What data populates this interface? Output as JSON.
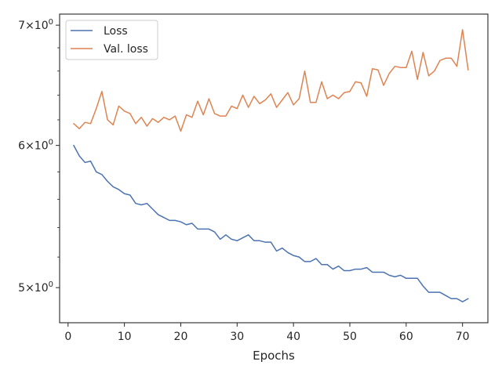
{
  "chart_data": {
    "type": "line",
    "title": "",
    "xlabel": "Epochs",
    "ylabel": "",
    "yscale": "log",
    "xlim": [
      -1.5,
      74.5
    ],
    "ylim": [
      4.78,
      7.1
    ],
    "grid": false,
    "legend_position": "top-left",
    "x_ticks": [
      0,
      10,
      20,
      30,
      40,
      50,
      60,
      70
    ],
    "x_tick_labels": [
      "0",
      "10",
      "20",
      "30",
      "40",
      "50",
      "60",
      "70"
    ],
    "y_ticks": [
      {
        "value": 5,
        "base": "5",
        "sep": "×",
        "exp_base": "10",
        "exp": "0"
      },
      {
        "value": 6,
        "base": "6",
        "sep": "×",
        "exp_base": "10",
        "exp": "0"
      },
      {
        "value": 7,
        "base": "7",
        "sep": "×",
        "exp_base": "10",
        "exp": "0"
      }
    ],
    "x": [
      1,
      2,
      3,
      4,
      5,
      6,
      7,
      8,
      9,
      10,
      11,
      12,
      13,
      14,
      15,
      16,
      17,
      18,
      19,
      20,
      21,
      22,
      23,
      24,
      25,
      26,
      27,
      28,
      29,
      30,
      31,
      32,
      33,
      34,
      35,
      36,
      37,
      38,
      39,
      40,
      41,
      42,
      43,
      44,
      45,
      46,
      47,
      48,
      49,
      50,
      51,
      52,
      53,
      54,
      55,
      56,
      57,
      58,
      59,
      60,
      61,
      62,
      63,
      64,
      65,
      66,
      67,
      68,
      69,
      70,
      71
    ],
    "series": [
      {
        "name": "Loss",
        "color": "#4c72b0",
        "values": [
          6.0,
          5.92,
          5.87,
          5.88,
          5.8,
          5.78,
          5.73,
          5.69,
          5.67,
          5.64,
          5.63,
          5.57,
          5.56,
          5.57,
          5.53,
          5.49,
          5.47,
          5.45,
          5.45,
          5.44,
          5.42,
          5.43,
          5.39,
          5.39,
          5.39,
          5.37,
          5.32,
          5.35,
          5.32,
          5.31,
          5.33,
          5.35,
          5.31,
          5.31,
          5.3,
          5.3,
          5.24,
          5.26,
          5.23,
          5.21,
          5.2,
          5.17,
          5.17,
          5.19,
          5.15,
          5.15,
          5.12,
          5.14,
          5.11,
          5.11,
          5.12,
          5.12,
          5.13,
          5.1,
          5.1,
          5.1,
          5.08,
          5.07,
          5.08,
          5.06,
          5.06,
          5.06,
          5.01,
          4.97,
          4.97,
          4.97,
          4.95,
          4.93,
          4.93,
          4.91,
          4.93
        ]
      },
      {
        "name": "Val. loss",
        "color": "#dd8452",
        "values": [
          6.17,
          6.13,
          6.18,
          6.17,
          6.29,
          6.43,
          6.2,
          6.16,
          6.31,
          6.27,
          6.25,
          6.17,
          6.22,
          6.15,
          6.21,
          6.18,
          6.22,
          6.2,
          6.23,
          6.11,
          6.24,
          6.22,
          6.35,
          6.24,
          6.37,
          6.25,
          6.23,
          6.23,
          6.31,
          6.29,
          6.4,
          6.3,
          6.39,
          6.33,
          6.36,
          6.41,
          6.3,
          6.36,
          6.42,
          6.32,
          6.37,
          6.6,
          6.34,
          6.34,
          6.51,
          6.37,
          6.4,
          6.37,
          6.42,
          6.43,
          6.51,
          6.5,
          6.39,
          6.62,
          6.61,
          6.48,
          6.58,
          6.64,
          6.63,
          6.63,
          6.77,
          6.53,
          6.76,
          6.56,
          6.6,
          6.69,
          6.71,
          6.71,
          6.64,
          6.96,
          6.61
        ]
      }
    ]
  }
}
